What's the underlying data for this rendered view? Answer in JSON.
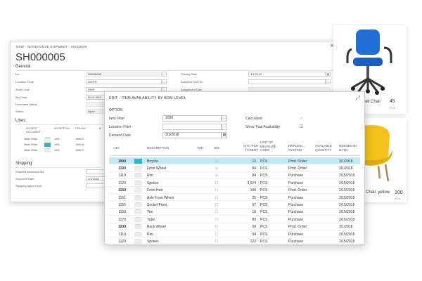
{
  "shipment": {
    "caption": "NEW - WAREHOUSE SHIPMENT - SH000005",
    "title": "SH000005",
    "general_label": "General",
    "fields_left": [
      {
        "label": "No.",
        "value": "SH000005"
      },
      {
        "label": "Location Code",
        "value": "WHITE"
      },
      {
        "label": "Zone Code",
        "value": "SHIP"
      },
      {
        "label": "Bin Code",
        "value": "W-09-0001"
      },
      {
        "label": "Document Status",
        "value": ""
      },
      {
        "label": "Status",
        "value": "Open"
      }
    ],
    "fields_right": [
      {
        "label": "Posting Date",
        "value": "3/1/2018"
      },
      {
        "label": "Assigned User ID",
        "value": ""
      },
      {
        "label": "Assignment Date",
        "value": ""
      }
    ],
    "lines_label": "Lines",
    "lines_columns": [
      "SOURCE DOCUMENT",
      "SOURCE NO.",
      "ITEM NO.",
      "B"
    ],
    "lines_rows": [
      {
        "doc": "Sales Order",
        "source_no": "1001",
        "item_no": "1896-S"
      },
      {
        "doc": "Sales Order",
        "source_no": "1001",
        "item_no": "1925-W"
      },
      {
        "doc": "Sales Order",
        "source_no": "1001",
        "item_no": "1906-S"
      }
    ],
    "shipping_label": "Shipping",
    "shipping_fields": [
      {
        "label": "External Document No.",
        "value": ""
      },
      {
        "label": "Shipment Date",
        "value": "3/1/2018"
      },
      {
        "label": "Shipping Agent Code",
        "value": ""
      }
    ]
  },
  "cards": [
    {
      "name": "wivel Chair",
      "qty": "45",
      "unit": "PCS",
      "color": "#1f6fd6"
    },
    {
      "name": "Chair, yellow",
      "qty": "100",
      "unit": "PCS",
      "color": "#f2c21b"
    }
  ],
  "dialog": {
    "title": "EDIT - ITEM AVAILABILITY BY BOM LEVEL",
    "option_label": "OPTION",
    "item_filter_label": "Item Filter",
    "item_filter_value": "1000",
    "location_filter_label": "Location Filter",
    "location_filter_value": "",
    "demand_date_label": "Demand Date",
    "demand_date_value": "3/1/2018",
    "calculated_label": "Calculated",
    "show_total_label": "Show Total Availability",
    "columns": {
      "no": "NO.",
      "description": "DESCRIPTION",
      "var": "VAR.",
      "bo": "BO.",
      "qty": "QTY. PER PARENT",
      "uom": "UNIT OF MEASURE CODE",
      "rep": "REPLENI... SYSTEM",
      "avail": "AVAILABLE QUANTITY",
      "needed": "NEEDED BY DATE"
    },
    "rows": [
      {
        "no": "1000",
        "desc": "Bicycle",
        "qty": "12",
        "uom": "PCS",
        "rep": "Prod. Order",
        "date": "3/1/2018",
        "bold": true,
        "selected": true,
        "bo_checked": false
      },
      {
        "no": "1100",
        "desc": "Front Wheel",
        "qty": "84",
        "uom": "PCS",
        "rep": "Prod. Order",
        "date": "3/1/2018",
        "bold": true,
        "selected": false,
        "bo_checked": true
      },
      {
        "no": "1110",
        "desc": "Rim",
        "qty": "84",
        "uom": "PCS",
        "rep": "Purchase",
        "date": "2/15/2018",
        "bold": false,
        "selected": false,
        "bo_checked": true
      },
      {
        "no": "1120",
        "desc": "Spokes",
        "qty": "3,024",
        "uom": "PCS",
        "rep": "Purchase",
        "date": "2/15/2018",
        "bold": false,
        "selected": false,
        "bo_checked": false
      },
      {
        "no": "1150",
        "desc": "Front Hub",
        "qty": "100",
        "uom": "PCS",
        "rep": "Prod. Order",
        "date": "2/15/2018",
        "bold": true,
        "selected": false,
        "bo_checked": false
      },
      {
        "no": "1151",
        "desc": "Axle Front Wheel",
        "qty": "25",
        "uom": "PCS",
        "rep": "Purchase",
        "date": "2/15/2018",
        "bold": false,
        "selected": false,
        "bo_checked": false
      },
      {
        "no": "1155",
        "desc": "Socket Front",
        "qty": "67",
        "uom": "PCS",
        "rep": "Purchase",
        "date": "2/15/2018",
        "bold": false,
        "selected": false,
        "bo_checked": false
      },
      {
        "no": "1160",
        "desc": "Tire",
        "qty": "10",
        "uom": "PCS",
        "rep": "Purchase",
        "date": "2/15/2018",
        "bold": false,
        "selected": false,
        "bo_checked": false
      },
      {
        "no": "1170",
        "desc": "Tube",
        "qty": "89",
        "uom": "PCS",
        "rep": "Purchase",
        "date": "2/15/2018",
        "bold": false,
        "selected": false,
        "bo_checked": false
      },
      {
        "no": "1200",
        "desc": "Back Wheel",
        "qty": "50",
        "uom": "PCS",
        "rep": "Prod. Order",
        "date": "3/1/2018",
        "bold": true,
        "selected": false,
        "bo_checked": false
      },
      {
        "no": "1110",
        "desc": "Rim",
        "qty": "94",
        "uom": "PCS",
        "rep": "Purchase",
        "date": "2/15/2018",
        "bold": false,
        "selected": false,
        "bo_checked": false
      },
      {
        "no": "1120",
        "desc": "Spokes",
        "qty": "122",
        "uom": "PCS",
        "rep": "Purchase",
        "date": "2/15/2018",
        "bold": false,
        "selected": false,
        "bo_checked": false
      }
    ]
  }
}
